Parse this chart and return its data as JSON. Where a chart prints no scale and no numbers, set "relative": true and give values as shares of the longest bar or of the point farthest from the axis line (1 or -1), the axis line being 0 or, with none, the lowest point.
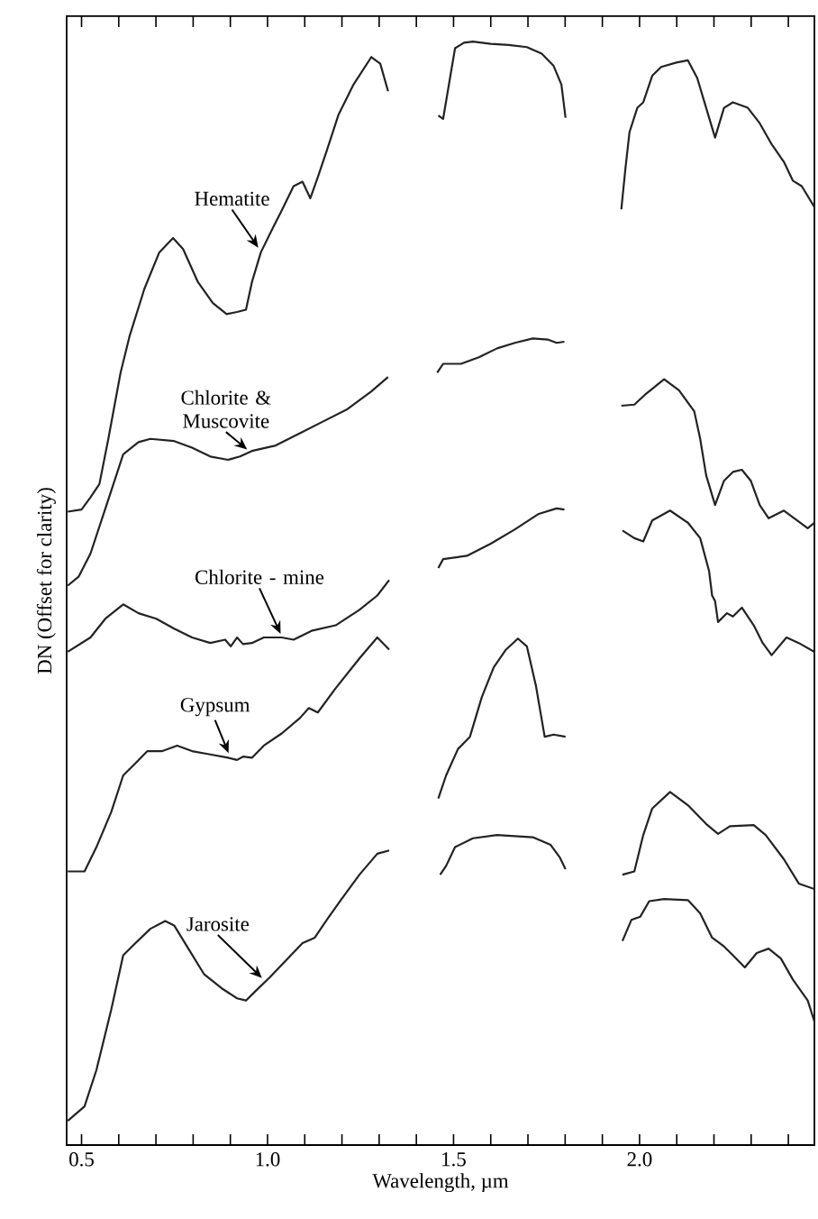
{
  "chart_data": {
    "type": "line",
    "relative": true,
    "xlabel": "Wavelength, µm",
    "ylabel": "DN (Offset for clarity)",
    "xlim": [
      0.46,
      2.47
    ],
    "xticks": [
      {
        "value": 0.5,
        "label": "0.5"
      },
      {
        "value": 0.6,
        "label": null
      },
      {
        "value": 0.7,
        "label": null
      },
      {
        "value": 0.8,
        "label": null
      },
      {
        "value": 0.9,
        "label": null
      },
      {
        "value": 1.0,
        "label": "1.0"
      },
      {
        "value": 1.1,
        "label": null
      },
      {
        "value": 1.2,
        "label": null
      },
      {
        "value": 1.3,
        "label": null
      },
      {
        "value": 1.4,
        "label": null
      },
      {
        "value": 1.5,
        "label": "1.5"
      },
      {
        "value": 1.6,
        "label": null
      },
      {
        "value": 1.7,
        "label": null
      },
      {
        "value": 1.8,
        "label": null
      },
      {
        "value": 1.9,
        "label": null
      },
      {
        "value": 2.0,
        "label": "2.0"
      },
      {
        "value": 2.1,
        "label": null
      },
      {
        "value": 2.2,
        "label": null
      },
      {
        "value": 2.3,
        "label": null
      },
      {
        "value": 2.4,
        "label": null
      }
    ],
    "grid": false,
    "line_style": "solid",
    "series": [
      {
        "color": "#222222",
        "x": [
          0.463,
          0.5,
          0.524,
          0.548,
          0.572,
          0.605,
          0.629,
          0.669,
          0.709,
          0.746,
          0.773,
          0.813,
          0.853,
          0.89,
          0.918,
          0.942,
          0.958,
          0.982,
          1.014,
          1.038,
          1.07,
          1.094,
          1.115,
          1.135,
          1.159,
          1.191,
          1.231,
          1.279,
          1.303,
          1.324,
          null,
          1.459,
          1.472,
          1.485,
          1.504,
          1.528,
          1.552,
          1.6,
          1.648,
          1.697,
          1.737,
          1.769,
          1.79,
          1.801,
          null,
          1.951,
          1.962,
          1.973,
          1.994,
          2.01,
          2.034,
          2.058,
          2.099,
          2.13,
          2.155,
          2.179,
          2.203,
          2.227,
          2.251,
          2.291,
          2.323,
          2.355,
          2.388,
          2.412,
          2.436,
          2.47
        ],
        "values": [
          0.574,
          0.576,
          0.587,
          0.599,
          0.64,
          0.7,
          0.733,
          0.776,
          0.809,
          0.822,
          0.812,
          0.782,
          0.763,
          0.753,
          0.755,
          0.757,
          0.782,
          0.809,
          0.831,
          0.847,
          0.869,
          0.873,
          0.858,
          0.877,
          0.901,
          0.934,
          0.961,
          0.986,
          0.98,
          0.955,
          null,
          0.933,
          0.93,
          0.956,
          0.994,
          0.999,
          1.0,
          0.998,
          0.997,
          0.995,
          0.989,
          0.978,
          0.961,
          0.931,
          null,
          0.848,
          0.885,
          0.918,
          0.94,
          0.945,
          0.969,
          0.977,
          0.981,
          0.983,
          0.967,
          0.94,
          0.913,
          0.94,
          0.945,
          0.94,
          0.926,
          0.907,
          0.891,
          0.874,
          0.869,
          0.85
        ]
      },
      {
        "color": "#222222",
        "x": [
          0.463,
          0.492,
          0.524,
          0.572,
          0.612,
          0.653,
          0.685,
          0.749,
          0.797,
          0.846,
          0.894,
          0.926,
          0.958,
          1.022,
          1.087,
          1.151,
          1.215,
          1.279,
          1.324,
          null,
          1.456,
          1.472,
          1.52,
          1.568,
          1.617,
          1.665,
          1.713,
          1.753,
          1.777,
          1.798,
          null,
          1.951,
          1.986,
          2.018,
          2.066,
          2.106,
          2.147,
          2.163,
          2.179,
          2.203,
          2.227,
          2.251,
          2.275,
          2.299,
          2.323,
          2.347,
          2.388,
          2.42,
          2.452,
          2.47
        ],
        "values": [
          0.507,
          0.515,
          0.536,
          0.585,
          0.626,
          0.637,
          0.64,
          0.638,
          0.632,
          0.624,
          0.621,
          0.624,
          0.629,
          0.634,
          0.645,
          0.656,
          0.667,
          0.683,
          0.696,
          null,
          0.7,
          0.708,
          0.708,
          0.714,
          0.722,
          0.727,
          0.731,
          0.73,
          0.727,
          0.728,
          null,
          0.67,
          0.671,
          0.681,
          0.694,
          0.684,
          0.665,
          0.64,
          0.607,
          0.58,
          0.602,
          0.61,
          0.612,
          0.602,
          0.58,
          0.568,
          0.575,
          0.567,
          0.559,
          0.564
        ]
      },
      {
        "color": "#222222",
        "x": [
          0.463,
          0.524,
          0.564,
          0.612,
          0.653,
          0.701,
          0.749,
          0.797,
          0.846,
          0.886,
          0.901,
          0.918,
          0.934,
          0.958,
          0.99,
          1.038,
          1.07,
          1.118,
          1.183,
          1.247,
          1.295,
          1.327,
          null,
          1.459,
          1.472,
          1.536,
          1.6,
          1.665,
          1.729,
          1.777,
          1.798,
          null,
          1.954,
          1.986,
          2.01,
          2.034,
          2.082,
          2.13,
          2.163,
          2.187,
          2.195,
          2.203,
          2.211,
          2.235,
          2.251,
          2.275,
          2.307,
          2.331,
          2.355,
          2.395,
          2.428,
          2.47
        ],
        "values": [
          0.447,
          0.46,
          0.477,
          0.49,
          0.482,
          0.477,
          0.468,
          0.46,
          0.455,
          0.458,
          0.452,
          0.46,
          0.454,
          0.455,
          0.46,
          0.46,
          0.458,
          0.466,
          0.471,
          0.485,
          0.498,
          0.512,
          null,
          0.523,
          0.531,
          0.534,
          0.545,
          0.558,
          0.572,
          0.577,
          0.576,
          null,
          0.557,
          0.55,
          0.547,
          0.566,
          0.575,
          0.564,
          0.55,
          0.52,
          0.498,
          0.493,
          0.474,
          0.482,
          0.479,
          0.487,
          0.471,
          0.455,
          0.444,
          0.46,
          0.455,
          0.447
        ]
      },
      {
        "color": "#222222",
        "x": [
          0.463,
          0.508,
          0.54,
          0.58,
          0.612,
          0.645,
          0.677,
          0.717,
          0.757,
          0.797,
          0.846,
          0.894,
          0.918,
          0.934,
          0.958,
          0.99,
          1.038,
          1.087,
          1.111,
          1.135,
          1.183,
          1.247,
          1.295,
          1.327,
          null,
          1.459,
          1.48,
          1.512,
          1.544,
          1.576,
          1.608,
          1.641,
          1.673,
          1.697,
          1.721,
          1.745,
          1.769,
          1.801,
          null,
          1.954,
          1.986,
          2.01,
          2.034,
          2.082,
          2.13,
          2.179,
          2.211,
          2.243,
          2.307,
          2.339,
          2.388,
          2.428,
          2.47
        ],
        "values": [
          0.248,
          0.248,
          0.27,
          0.302,
          0.335,
          0.346,
          0.357,
          0.357,
          0.362,
          0.357,
          0.354,
          0.351,
          0.349,
          0.352,
          0.351,
          0.362,
          0.373,
          0.387,
          0.396,
          0.392,
          0.414,
          0.441,
          0.46,
          0.449,
          null,
          0.314,
          0.335,
          0.359,
          0.37,
          0.406,
          0.433,
          0.449,
          0.459,
          0.452,
          0.417,
          0.37,
          0.372,
          0.37,
          null,
          0.245,
          0.248,
          0.281,
          0.305,
          0.32,
          0.308,
          0.291,
          0.282,
          0.289,
          0.29,
          0.281,
          0.259,
          0.237,
          0.232
        ]
      },
      {
        "color": "#222222",
        "x": [
          0.463,
          0.508,
          0.54,
          0.58,
          0.612,
          0.645,
          0.685,
          0.725,
          0.749,
          0.789,
          0.829,
          0.877,
          0.918,
          0.942,
          0.966,
          1.006,
          1.054,
          1.094,
          1.127,
          1.159,
          1.199,
          1.247,
          1.295,
          1.327,
          null,
          1.464,
          1.48,
          1.504,
          1.552,
          1.617,
          1.713,
          1.761,
          1.785,
          1.801,
          null,
          1.954,
          1.978,
          2.002,
          2.026,
          2.066,
          2.13,
          2.163,
          2.195,
          2.227,
          2.251,
          2.283,
          2.315,
          2.347,
          2.38,
          2.412,
          2.452,
          2.47
        ],
        "values": [
          0.022,
          0.035,
          0.068,
          0.123,
          0.172,
          0.183,
          0.196,
          0.203,
          0.199,
          0.177,
          0.155,
          0.142,
          0.133,
          0.131,
          0.139,
          0.152,
          0.169,
          0.183,
          0.188,
          0.204,
          0.223,
          0.245,
          0.264,
          0.267,
          null,
          0.245,
          0.253,
          0.27,
          0.278,
          0.281,
          0.279,
          0.272,
          0.261,
          0.25,
          null,
          0.185,
          0.204,
          0.207,
          0.221,
          0.223,
          0.222,
          0.21,
          0.188,
          0.18,
          0.172,
          0.161,
          0.174,
          0.178,
          0.169,
          0.15,
          0.131,
          0.112
        ]
      }
    ],
    "annotations": [
      {
        "text": "Hematite",
        "x": 0.98,
        "y": 0.81
      },
      {
        "text": "Chlorite & Muscovite",
        "x": 0.95,
        "y": 0.627
      },
      {
        "text": "Chlorite - mine",
        "x": 1.04,
        "y": 0.46
      },
      {
        "text": "Gypsum",
        "x": 0.9,
        "y": 0.352
      },
      {
        "text": "Jarosite",
        "x": 0.99,
        "y": 0.148
      }
    ]
  }
}
